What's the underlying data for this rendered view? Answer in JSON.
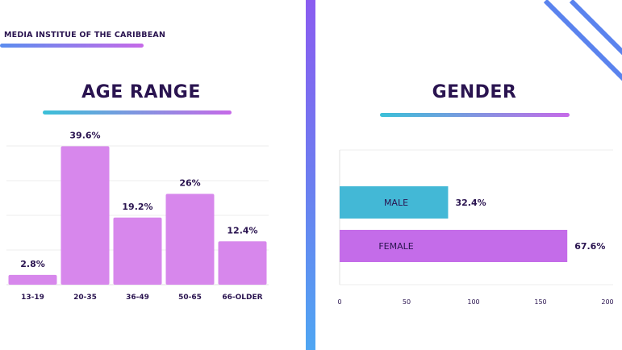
{
  "header": {
    "brand": "MEDIA INSTITUE OF THE CARIBBEAN"
  },
  "colors": {
    "age_bar": "#d787ec",
    "male_bar": "#43b8d6",
    "female_bar": "#c46ce9",
    "accent_blue": "#5a83ee"
  },
  "chart_data": [
    {
      "type": "bar",
      "title": "AGE RANGE",
      "categories": [
        "13-19",
        "20-35",
        "36-49",
        "50-65",
        "66-OLDER"
      ],
      "values": [
        2.8,
        39.6,
        19.2,
        26,
        12.4
      ],
      "value_labels": [
        "2.8%",
        "39.6%",
        "19.2%",
        "26%",
        "12.4%"
      ],
      "ylim": [
        0,
        45
      ],
      "grid": true
    },
    {
      "type": "bar",
      "orientation": "horizontal",
      "title": "GENDER",
      "categories": [
        "MALE",
        "FEMALE"
      ],
      "values": [
        81,
        170
      ],
      "value_labels": [
        "32.4%",
        "67.6%"
      ],
      "xticks": [
        "0",
        "50",
        "100",
        "150",
        "200"
      ],
      "xlim": [
        0,
        200
      ],
      "grid": true
    }
  ]
}
